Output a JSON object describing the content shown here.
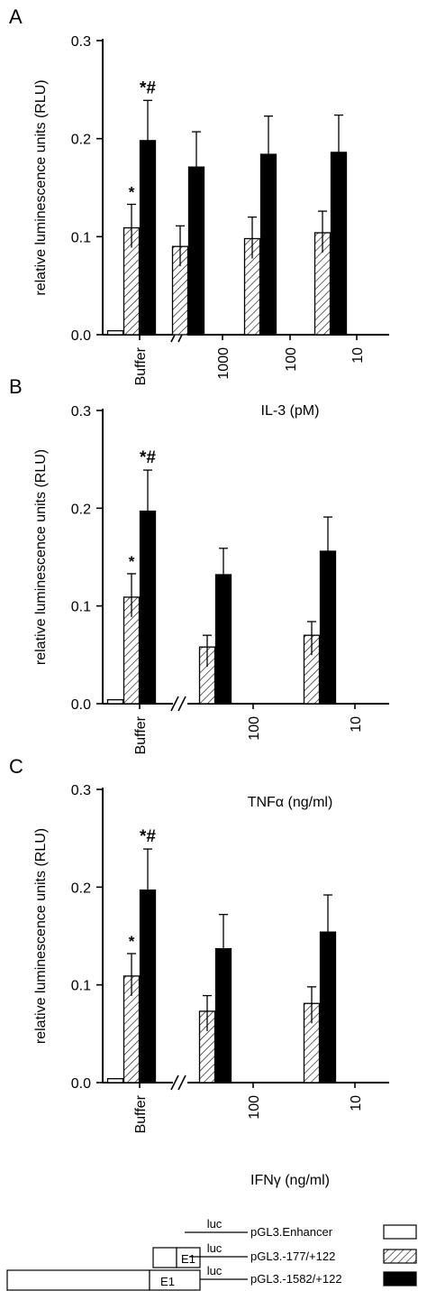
{
  "colors": {
    "enhancer": "#ffffff",
    "minimal": "hatch",
    "full": "#000000"
  },
  "chart_data": [
    {
      "type": "bar",
      "panel": "A",
      "ylabel": "relative luminescence units (RLU)",
      "xlabel": "IL-3 (pM)",
      "ylim": [
        0,
        0.3
      ],
      "yticks": [
        "0.0",
        "0.1",
        "0.2",
        "0.3"
      ],
      "groups": [
        {
          "label": "Buffer",
          "bars": [
            {
              "series": "pGL3.Enhancer",
              "value": 0.004,
              "err": 0.001,
              "mark": ""
            },
            {
              "series": "pGL3.-177/+122",
              "value": 0.109,
              "err": 0.024,
              "mark": "*"
            },
            {
              "series": "pGL3.-1582/+122",
              "value": 0.198,
              "err": 0.041,
              "mark": "*#"
            }
          ]
        },
        {
          "label": "1000",
          "bars": [
            {
              "series": "pGL3.-177/+122",
              "value": 0.09,
              "err": 0.021,
              "mark": ""
            },
            {
              "series": "pGL3.-1582/+122",
              "value": 0.171,
              "err": 0.036,
              "mark": ""
            }
          ]
        },
        {
          "label": "100",
          "bars": [
            {
              "series": "pGL3.-177/+122",
              "value": 0.098,
              "err": 0.022,
              "mark": ""
            },
            {
              "series": "pGL3.-1582/+122",
              "value": 0.184,
              "err": 0.039,
              "mark": ""
            }
          ]
        },
        {
          "label": "10",
          "bars": [
            {
              "series": "pGL3.-177/+122",
              "value": 0.104,
              "err": 0.022,
              "mark": ""
            },
            {
              "series": "pGL3.-1582/+122",
              "value": 0.186,
              "err": 0.038,
              "mark": ""
            }
          ]
        }
      ]
    },
    {
      "type": "bar",
      "panel": "B",
      "ylabel": "relative luminescence units (RLU)",
      "xlabel": "TNFα (ng/ml)",
      "ylim": [
        0,
        0.3
      ],
      "yticks": [
        "0.0",
        "0.1",
        "0.2",
        "0.3"
      ],
      "groups": [
        {
          "label": "Buffer",
          "bars": [
            {
              "series": "pGL3.Enhancer",
              "value": 0.004,
              "err": 0.001,
              "mark": ""
            },
            {
              "series": "pGL3.-177/+122",
              "value": 0.109,
              "err": 0.024,
              "mark": "*"
            },
            {
              "series": "pGL3.-1582/+122",
              "value": 0.197,
              "err": 0.042,
              "mark": "*#"
            }
          ]
        },
        {
          "label": "100",
          "bars": [
            {
              "series": "pGL3.-177/+122",
              "value": 0.058,
              "err": 0.012,
              "mark": ""
            },
            {
              "series": "pGL3.-1582/+122",
              "value": 0.132,
              "err": 0.027,
              "mark": ""
            }
          ]
        },
        {
          "label": "10",
          "bars": [
            {
              "series": "pGL3.-177/+122",
              "value": 0.07,
              "err": 0.014,
              "mark": ""
            },
            {
              "series": "pGL3.-1582/+122",
              "value": 0.156,
              "err": 0.035,
              "mark": ""
            }
          ]
        }
      ]
    },
    {
      "type": "bar",
      "panel": "C",
      "ylabel": "relative luminescence units (RLU)",
      "xlabel": "IFNγ (ng/ml)",
      "ylim": [
        0,
        0.3
      ],
      "yticks": [
        "0.0",
        "0.1",
        "0.2",
        "0.3"
      ],
      "groups": [
        {
          "label": "Buffer",
          "bars": [
            {
              "series": "pGL3.Enhancer",
              "value": 0.004,
              "err": 0.001,
              "mark": ""
            },
            {
              "series": "pGL3.-177/+122",
              "value": 0.109,
              "err": 0.023,
              "mark": "*"
            },
            {
              "series": "pGL3.-1582/+122",
              "value": 0.197,
              "err": 0.042,
              "mark": "*#"
            }
          ]
        },
        {
          "label": "100",
          "bars": [
            {
              "series": "pGL3.-177/+122",
              "value": 0.073,
              "err": 0.016,
              "mark": ""
            },
            {
              "series": "pGL3.-1582/+122",
              "value": 0.137,
              "err": 0.035,
              "mark": ""
            }
          ]
        },
        {
          "label": "10",
          "bars": [
            {
              "series": "pGL3.-177/+122",
              "value": 0.081,
              "err": 0.017,
              "mark": ""
            },
            {
              "series": "pGL3.-1582/+122",
              "value": 0.154,
              "err": 0.038,
              "mark": ""
            }
          ]
        }
      ]
    }
  ],
  "legend": {
    "items": [
      {
        "key": "enhancer",
        "label": "pGL3.Enhancer",
        "luc": "luc"
      },
      {
        "key": "minimal",
        "label": "pGL3.-177/+122",
        "luc": "luc",
        "exon": "E1"
      },
      {
        "key": "full",
        "label": "pGL3.-1582/+122",
        "luc": "luc",
        "exon": "E1"
      }
    ]
  }
}
